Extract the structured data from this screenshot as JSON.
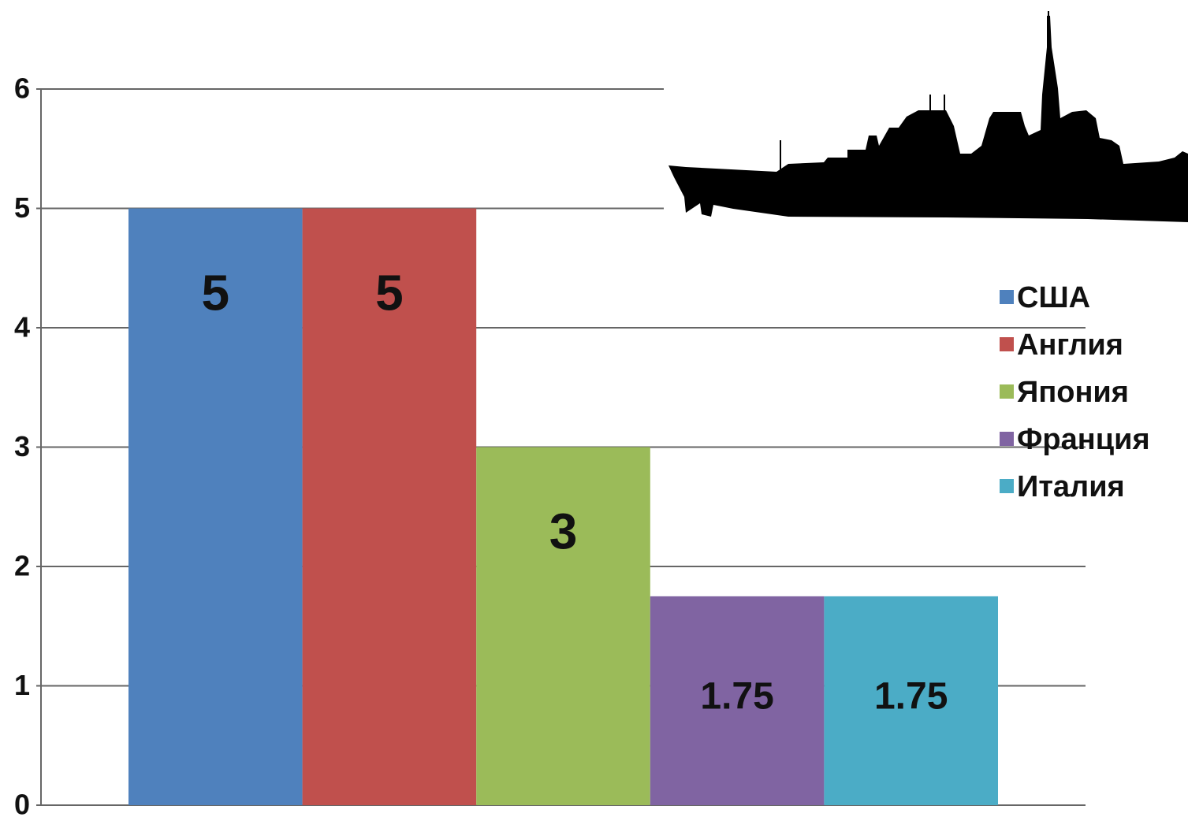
{
  "chart_data": {
    "type": "bar",
    "categories": [
      null
    ],
    "series": [
      {
        "name": "США",
        "color": "#4f81bd",
        "values": [
          5
        ]
      },
      {
        "name": "Англия",
        "color": "#c0504d",
        "values": [
          5
        ]
      },
      {
        "name": "Япония",
        "color": "#9bbb59",
        "values": [
          3
        ]
      },
      {
        "name": "Франция",
        "color": "#8064a2",
        "values": [
          1.75
        ]
      },
      {
        "name": "Италия",
        "color": "#4bacc6",
        "values": [
          1.75
        ]
      }
    ],
    "ylim": [
      0,
      6
    ],
    "yticks": [
      0,
      1,
      2,
      3,
      4,
      5,
      6
    ],
    "grid": true,
    "legend": "right"
  }
}
